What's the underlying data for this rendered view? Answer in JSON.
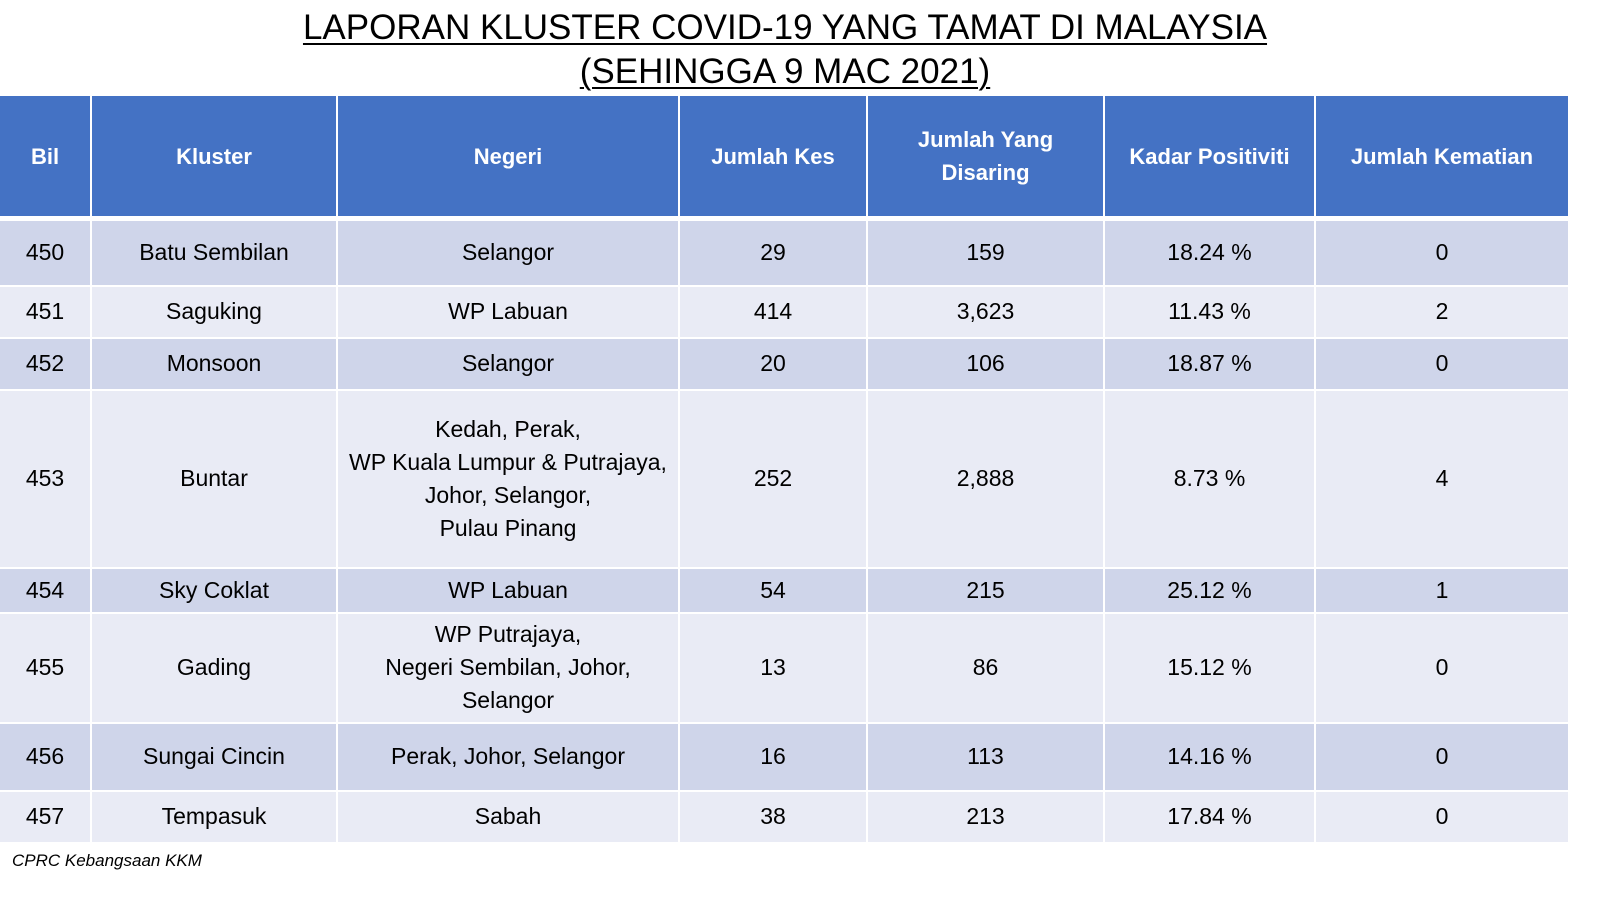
{
  "title": {
    "line1": "LAPORAN KLUSTER COVID-19 YANG TAMAT DI MALAYSIA",
    "line2": "(SEHINGGA 9 MAC 2021)"
  },
  "table": {
    "headers": {
      "bil": "Bil",
      "kluster": "Kluster",
      "negeri": "Negeri",
      "jumlah_kes": "Jumlah Kes",
      "jumlah_disaring_1": "Jumlah Yang",
      "jumlah_disaring_2": "Disaring",
      "kadar_positiviti": "Kadar Positiviti",
      "jumlah_kematian": "Jumlah Kematian"
    },
    "rows": [
      {
        "bil": "450",
        "kluster": "Batu Sembilan",
        "negeri": [
          "Selangor"
        ],
        "kes": "29",
        "disaring": "159",
        "positiviti": "18.24 %",
        "kematian": "0"
      },
      {
        "bil": "451",
        "kluster": "Saguking",
        "negeri": [
          "WP Labuan"
        ],
        "kes": "414",
        "disaring": "3,623",
        "positiviti": "11.43 %",
        "kematian": "2"
      },
      {
        "bil": "452",
        "kluster": "Monsoon",
        "negeri": [
          "Selangor"
        ],
        "kes": "20",
        "disaring": "106",
        "positiviti": "18.87 %",
        "kematian": "0"
      },
      {
        "bil": "453",
        "kluster": "Buntar",
        "negeri": [
          "Kedah, Perak,",
          "WP Kuala Lumpur & Putrajaya,",
          "Johor, Selangor,",
          "Pulau Pinang"
        ],
        "kes": "252",
        "disaring": "2,888",
        "positiviti": "8.73 %",
        "kematian": "4"
      },
      {
        "bil": "454",
        "kluster": "Sky Coklat",
        "negeri": [
          "WP Labuan"
        ],
        "kes": "54",
        "disaring": "215",
        "positiviti": "25.12 %",
        "kematian": "1"
      },
      {
        "bil": "455",
        "kluster": "Gading",
        "negeri": [
          "WP Putrajaya,",
          "Negeri Sembilan, Johor,",
          "Selangor"
        ],
        "kes": "13",
        "disaring": "86",
        "positiviti": "15.12 %",
        "kematian": "0"
      },
      {
        "bil": "456",
        "kluster": "Sungai Cincin",
        "negeri": [
          "Perak, Johor, Selangor"
        ],
        "kes": "16",
        "disaring": "113",
        "positiviti": "14.16 %",
        "kematian": "0"
      },
      {
        "bil": "457",
        "kluster": "Tempasuk",
        "negeri": [
          "Sabah"
        ],
        "kes": "38",
        "disaring": "213",
        "positiviti": "17.84 %",
        "kematian": "0"
      }
    ]
  },
  "footer": {
    "source": "CPRC Kebangsaan KKM"
  },
  "colors": {
    "header_bg": "#4472c4",
    "row_odd": "#cfd5ea",
    "row_even": "#e9ebf5"
  }
}
